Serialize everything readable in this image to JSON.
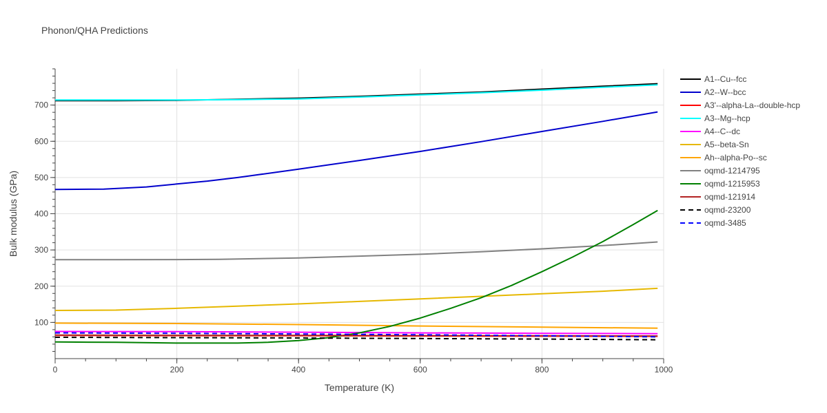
{
  "chart_data": {
    "type": "line",
    "title": "Phonon/QHA Predictions",
    "xlabel": "Temperature (K)",
    "ylabel": "Bulk modulus (GPa)",
    "xlim": [
      0,
      1000
    ],
    "ylim": [
      0,
      800
    ],
    "xticks": [
      0,
      200,
      400,
      600,
      800,
      1000
    ],
    "yticks": [
      100,
      200,
      300,
      400,
      500,
      600,
      700
    ],
    "grid": true,
    "legend_position": "right",
    "series": [
      {
        "name": "A1--Cu--fcc",
        "color": "#000000",
        "dash": false,
        "x": [
          0,
          100,
          200,
          300,
          400,
          500,
          600,
          700,
          800,
          900,
          990
        ],
        "y": [
          712,
          712,
          713,
          716,
          719,
          724,
          730,
          736,
          744,
          752,
          759
        ]
      },
      {
        "name": "A2--W--bcc",
        "color": "#0000cc",
        "dash": false,
        "x": [
          0,
          80,
          150,
          200,
          250,
          300,
          400,
          500,
          600,
          700,
          800,
          900,
          990
        ],
        "y": [
          467,
          468,
          474,
          482,
          490,
          500,
          523,
          547,
          572,
          599,
          627,
          655,
          681
        ]
      },
      {
        "name": "A3'--alpha-La--double-hcp",
        "color": "#ff0000",
        "dash": false,
        "x": [
          0,
          200,
          400,
          600,
          800,
          990
        ],
        "y": [
          64,
          63.5,
          63,
          62.5,
          62,
          61.5
        ]
      },
      {
        "name": "A3--Mg--hcp",
        "color": "#00ffff",
        "dash": false,
        "x": [
          0,
          100,
          200,
          300,
          400,
          500,
          600,
          700,
          800,
          900,
          990
        ],
        "y": [
          714,
          714,
          714,
          715,
          717,
          722,
          728,
          734,
          741,
          749,
          756
        ]
      },
      {
        "name": "A4--C--dc",
        "color": "#ff00ff",
        "dash": false,
        "x": [
          0,
          200,
          400,
          600,
          800,
          990
        ],
        "y": [
          75,
          74.5,
          73,
          71,
          70,
          69
        ]
      },
      {
        "name": "A5--beta-Sn",
        "color": "#e6b800",
        "dash": false,
        "x": [
          0,
          100,
          200,
          300,
          400,
          500,
          600,
          700,
          800,
          900,
          990
        ],
        "y": [
          133,
          134,
          139,
          145,
          151,
          158,
          165,
          172,
          179,
          186,
          194
        ]
      },
      {
        "name": "Ah--alpha-Po--sc",
        "color": "#ffa500",
        "dash": false,
        "x": [
          0,
          200,
          400,
          600,
          800,
          990
        ],
        "y": [
          98,
          97,
          94,
          90,
          87,
          84
        ]
      },
      {
        "name": "oqmd-1214795",
        "color": "#808080",
        "dash": false,
        "x": [
          0,
          100,
          200,
          270,
          400,
          500,
          600,
          700,
          800,
          900,
          990
        ],
        "y": [
          273,
          273,
          273.5,
          274,
          278,
          283,
          288,
          295,
          303,
          312,
          322
        ]
      },
      {
        "name": "oqmd-1215953",
        "color": "#008000",
        "dash": false,
        "x": [
          0,
          100,
          200,
          300,
          350,
          400,
          450,
          500,
          550,
          600,
          650,
          700,
          750,
          800,
          850,
          900,
          950,
          990
        ],
        "y": [
          46,
          45,
          43,
          43,
          45,
          50,
          58,
          71,
          89,
          112,
          139,
          168,
          202,
          240,
          280,
          323,
          370,
          409
        ]
      },
      {
        "name": "oqmd-121914",
        "color": "#b22222",
        "dash": false,
        "x": [
          0,
          200,
          400,
          600,
          800,
          990
        ],
        "y": [
          65,
          64.5,
          64,
          63.5,
          63,
          62.5
        ]
      },
      {
        "name": "oqmd-23200",
        "color": "#000000",
        "dash": true,
        "x": [
          0,
          200,
          400,
          600,
          800,
          990
        ],
        "y": [
          59,
          58,
          57,
          55.5,
          54,
          52
        ]
      },
      {
        "name": "oqmd-3485",
        "color": "#0000ff",
        "dash": true,
        "x": [
          0,
          200,
          400,
          600,
          800,
          990
        ],
        "y": [
          71,
          70,
          68,
          66,
          63,
          60
        ]
      }
    ]
  }
}
